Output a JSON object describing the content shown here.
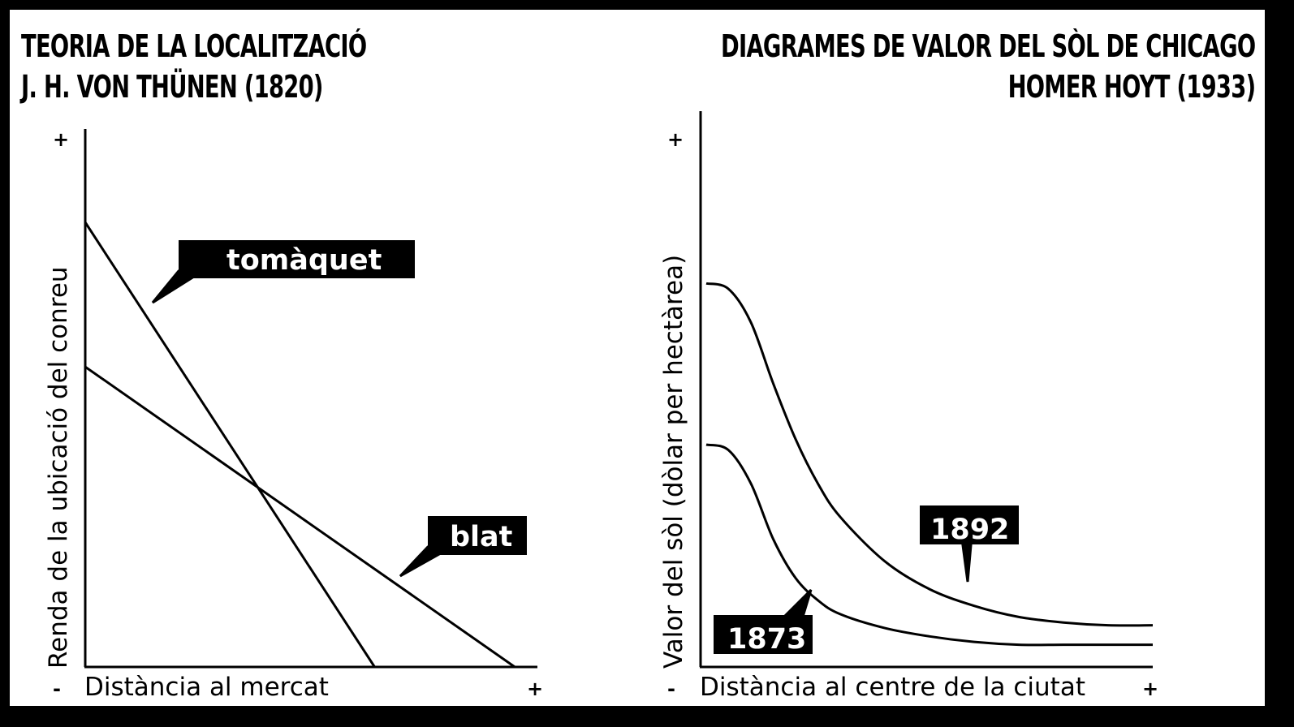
{
  "chart_data": [
    {
      "type": "line",
      "title": [
        "TEORIA DE LA LOCALITZACIÓ",
        "J. H. VON THÜNEN (1820)"
      ],
      "xlabel": "Distància al mercat",
      "ylabel": "Renda de la ubicació del conreu",
      "x_min_label": "-",
      "x_max_label": "+",
      "y_max_label": "+",
      "xlim": [
        0,
        100
      ],
      "ylim": [
        0,
        100
      ],
      "series": [
        {
          "name": "tomàquet",
          "x": [
            0,
            64
          ],
          "y": [
            80,
            0
          ]
        },
        {
          "name": "blat",
          "x": [
            0,
            95
          ],
          "y": [
            54,
            0
          ]
        }
      ]
    },
    {
      "type": "line",
      "title": [
        "DIAGRAMES DE VALOR DEL SÒL DE CHICAGO",
        "HOMER HOYT (1933)"
      ],
      "xlabel": "Distància al centre de la ciutat",
      "ylabel": "Valor del sòl (dòlar per hectàrea)",
      "x_min_label": "-",
      "x_max_label": "+",
      "y_max_label": "+",
      "xlim": [
        0,
        100
      ],
      "ylim": [
        0,
        100
      ],
      "series": [
        {
          "name": "1892",
          "x": [
            0,
            5,
            10,
            15,
            20,
            25,
            30,
            40,
            50,
            60,
            70,
            80,
            90,
            100
          ],
          "y": [
            69,
            68,
            62,
            51,
            41,
            33,
            27,
            19,
            14,
            11,
            9,
            8,
            7.5,
            7.5
          ]
        },
        {
          "name": "1873",
          "x": [
            0,
            5,
            10,
            15,
            20,
            25,
            30,
            40,
            50,
            60,
            70,
            80,
            90,
            100
          ],
          "y": [
            40,
            39,
            33,
            23,
            16,
            12,
            9.5,
            7,
            5.5,
            4.5,
            4,
            4,
            4,
            4
          ]
        }
      ]
    }
  ]
}
